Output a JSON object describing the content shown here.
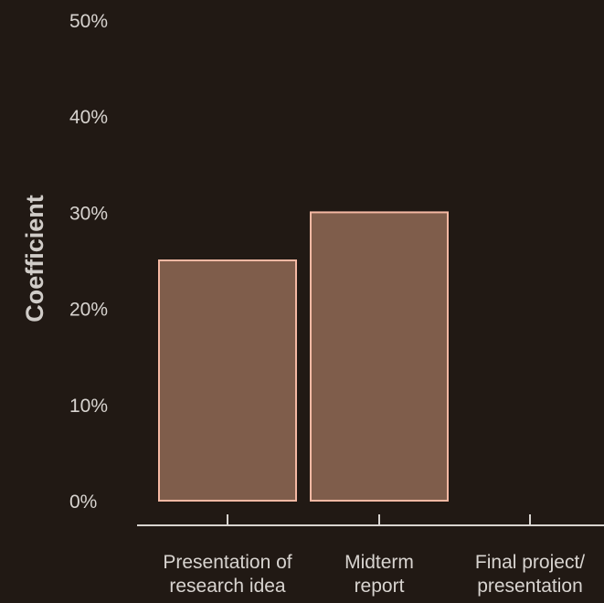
{
  "colors": {
    "background": "#211914",
    "bar_fill": "#7f5d4b",
    "bar_stroke": "#f5b8a3",
    "axis": "#d8d4d0",
    "text": "#d8d4d0"
  },
  "chart_data": {
    "type": "bar",
    "title": "",
    "xlabel": "",
    "ylabel": "Coefficient",
    "ylim": [
      0,
      50
    ],
    "yticks": [
      0,
      10,
      20,
      30,
      40,
      50
    ],
    "ytick_labels": [
      "0%",
      "10%",
      "20%",
      "30%",
      "40%",
      "50%"
    ],
    "categories": [
      [
        "Presentation of",
        "research idea"
      ],
      [
        "Midterm",
        "report"
      ],
      [
        "Final project/",
        "presentation"
      ]
    ],
    "values": [
      25,
      30,
      0
    ],
    "grid": false,
    "legend": "none"
  }
}
